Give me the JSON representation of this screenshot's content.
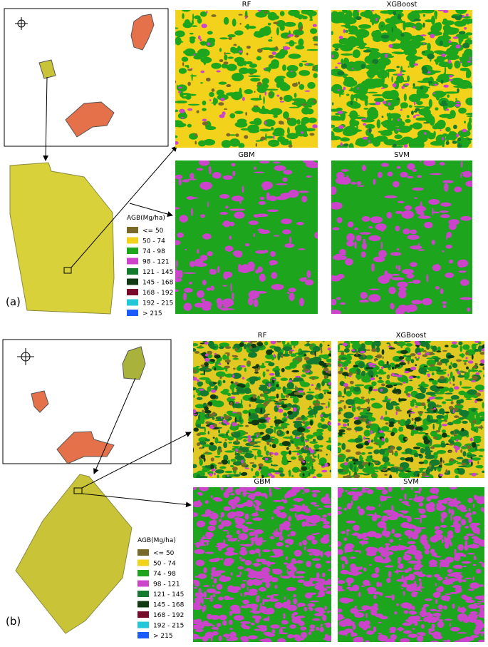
{
  "panels": [
    {
      "label": "(a)",
      "maps": [
        "RF",
        "XGBoost",
        "GBM",
        "SVM"
      ],
      "legend": {
        "title": "AGB(Mg/ha)",
        "items": [
          {
            "label": "<= 50",
            "color": "#7a6a2a"
          },
          {
            "label": "50 - 74",
            "color": "#f2d21a"
          },
          {
            "label": "74 - 98",
            "color": "#1ea51e"
          },
          {
            "label": "98 - 121",
            "color": "#cc44cc"
          },
          {
            "label": "121 - 145",
            "color": "#137a2e"
          },
          {
            "label": "145 - 168",
            "color": "#0f3a12"
          },
          {
            "label": "168 - 192",
            "color": "#7a0a2a"
          },
          {
            "label": "192 - 215",
            "color": "#22c8d8"
          },
          {
            "label": "> 215",
            "color": "#1a5cff"
          }
        ]
      }
    },
    {
      "label": "(b)",
      "maps": [
        "RF",
        "XGBoost",
        "GBM",
        "SVM"
      ],
      "legend": {
        "title": "AGB(Mg/ha)",
        "items": [
          {
            "label": "<= 50",
            "color": "#7a6a2a"
          },
          {
            "label": "50 - 74",
            "color": "#f2d21a"
          },
          {
            "label": "74 - 98",
            "color": "#1ea51e"
          },
          {
            "label": "98 - 121",
            "color": "#cc44cc"
          },
          {
            "label": "121 - 145",
            "color": "#137a2e"
          },
          {
            "label": "145 - 168",
            "color": "#0f3a12"
          },
          {
            "label": "168 - 192",
            "color": "#7a0a2a"
          },
          {
            "label": "192 - 215",
            "color": "#22c8d8"
          },
          {
            "label": "> 215",
            "color": "#1a5cff"
          }
        ]
      }
    }
  ]
}
